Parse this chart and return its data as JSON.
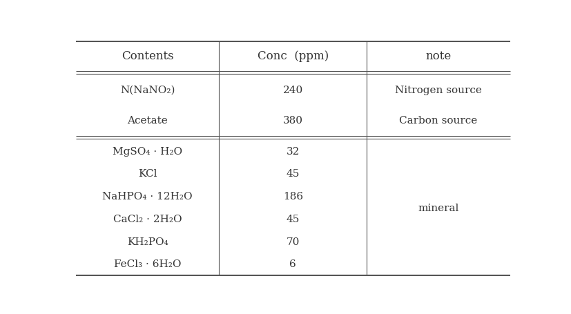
{
  "header": [
    "Contents",
    "Conc  (ppm)",
    "note"
  ],
  "rows": [
    [
      "N(NaNO₂)",
      "240",
      "Nitrogen source"
    ],
    [
      "Acetate",
      "380",
      "Carbon source"
    ],
    [
      "MgSO₄ · H₂O",
      "32",
      ""
    ],
    [
      "KCl",
      "45",
      ""
    ],
    [
      "NaHPO₄ · 12H₂O",
      "186",
      ""
    ],
    [
      "CaCl₂ · 2H₂O",
      "45",
      ""
    ],
    [
      "KH₂PO₄",
      "70",
      ""
    ],
    [
      "FeCl₃ · 6H₂O",
      "6",
      ""
    ]
  ],
  "mineral_note": "mineral",
  "bg_color": "#ffffff",
  "line_color": "#555555",
  "text_color": "#333333",
  "header_fontsize": 12,
  "body_fontsize": 11,
  "fig_width": 8.28,
  "fig_height": 4.56
}
